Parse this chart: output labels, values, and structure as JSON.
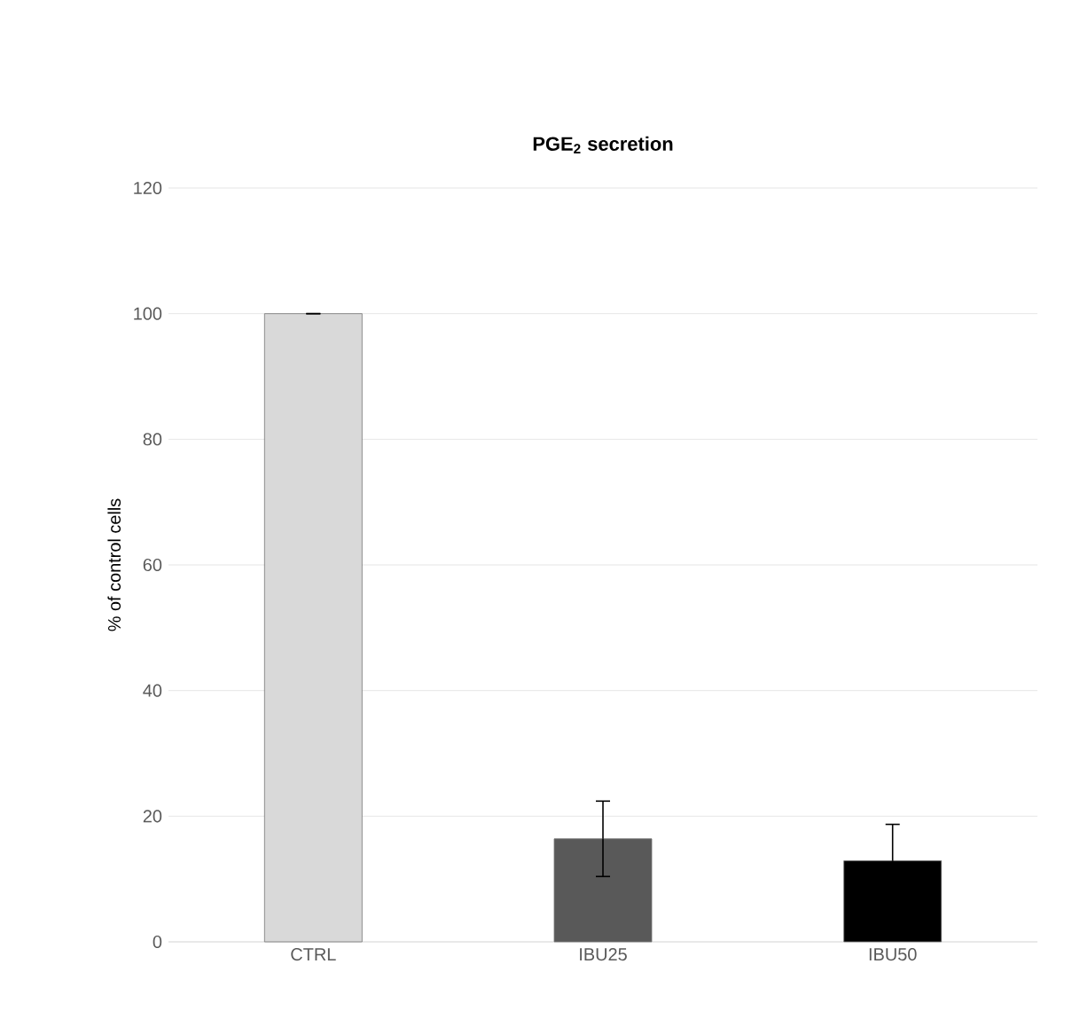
{
  "chart_data": {
    "type": "bar",
    "title": "PGE$_{2}$ secretion",
    "ylabel": "% of control cells",
    "categories": [
      "CTRL",
      "IBU25",
      "IBU50"
    ],
    "values": [
      100,
      16.4,
      12.9
    ],
    "errors": [
      0,
      6,
      5.8
    ],
    "colors": [
      "#d9d9d9",
      "#595959",
      "#000000"
    ],
    "ylim": [
      0,
      120
    ],
    "yticks": [
      0,
      20,
      40,
      60,
      80,
      100,
      120
    ],
    "grid": "y"
  }
}
